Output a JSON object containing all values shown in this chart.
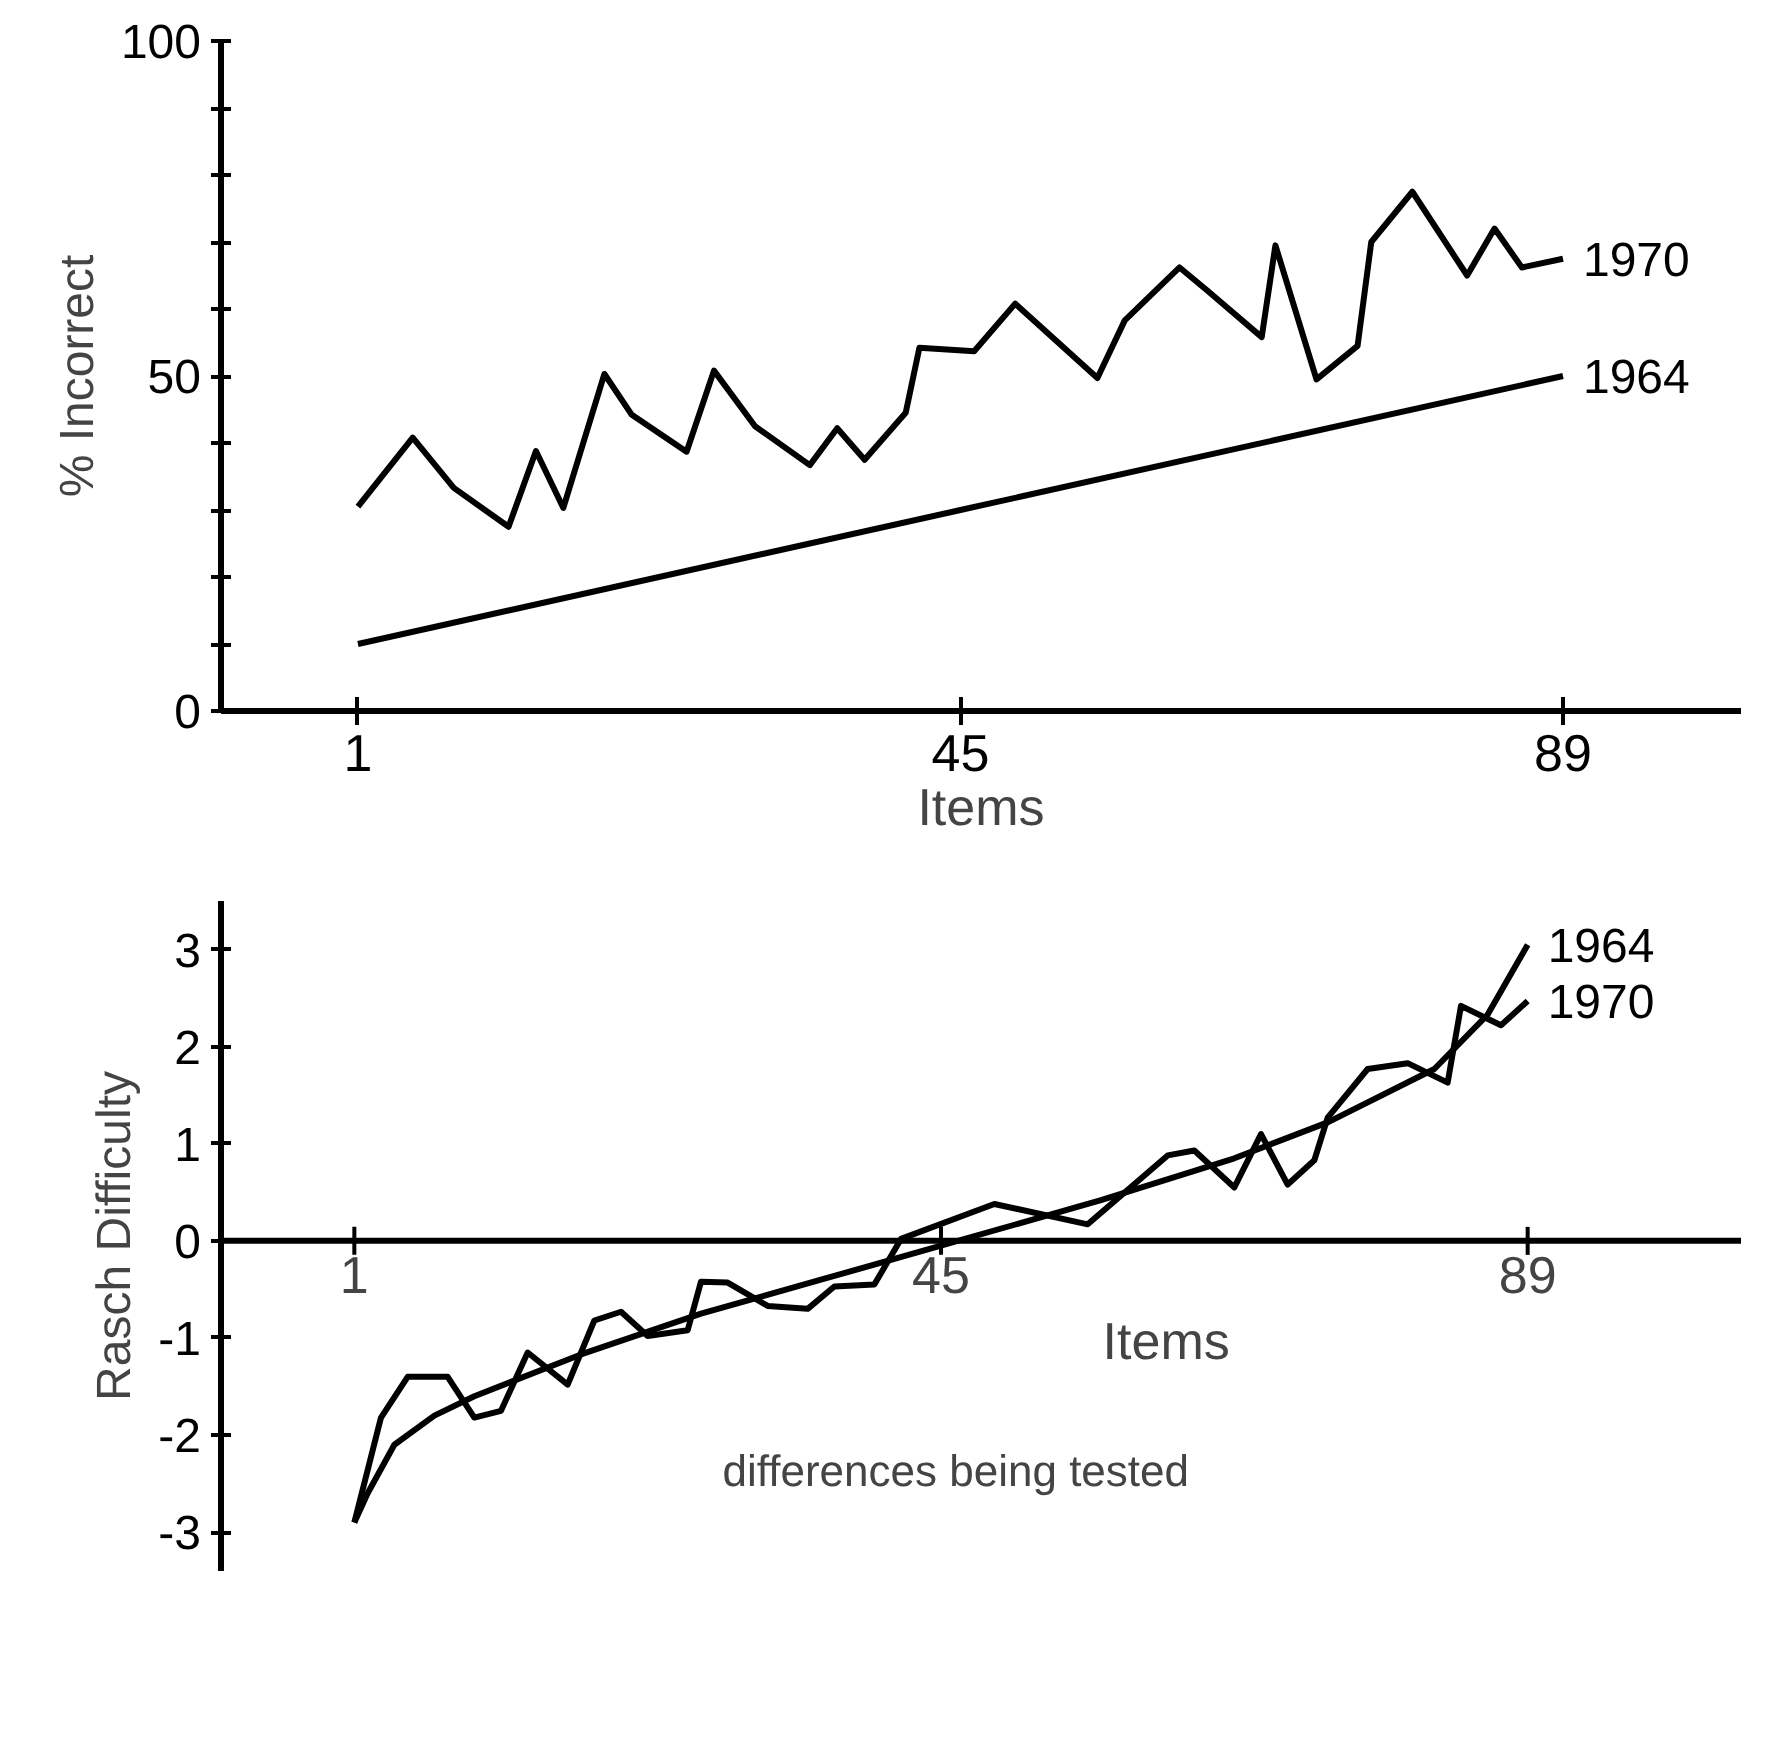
{
  "chart_data": [
    {
      "type": "line",
      "ylabel": "% Incorrect",
      "xlabel": "Items",
      "xlim": [
        -9,
        102
      ],
      "ylim": [
        0,
        100
      ],
      "xticks": [
        1,
        45,
        89
      ],
      "yticks": [
        0,
        {
          "value": 10,
          "label": null
        },
        {
          "value": 20,
          "label": null
        },
        {
          "value": 30,
          "label": null
        },
        {
          "value": 40,
          "label": null
        },
        50,
        {
          "value": 60,
          "label": null
        },
        {
          "value": 70,
          "label": null
        },
        {
          "value": 80,
          "label": null
        },
        {
          "value": 90,
          "label": null
        },
        100
      ],
      "grid": false,
      "marker": "none",
      "line_style": "solid",
      "series": [
        {
          "name": "1970",
          "color": "#000000",
          "x": [
            1,
            5,
            8,
            12,
            14,
            16,
            19,
            21,
            25,
            27,
            30,
            34,
            36,
            38,
            41,
            42,
            46,
            49,
            55,
            57,
            61,
            63,
            67,
            68,
            71,
            74,
            75,
            78,
            82,
            84,
            86,
            89
          ],
          "values": [
            30.5,
            40.8,
            33.3,
            27.5,
            38.8,
            30.3,
            50.3,
            44.2,
            38.7,
            50.8,
            42.5,
            36.7,
            42.2,
            37.5,
            44.5,
            54.2,
            53.7,
            60.8,
            49.7,
            58.3,
            66.2,
            62.8,
            55.8,
            69.5,
            49.5,
            54.5,
            70,
            77.5,
            65,
            72,
            66.2,
            67.5
          ]
        },
        {
          "name": "1964",
          "color": "#000000",
          "x": [
            1,
            45,
            89
          ],
          "values": [
            10,
            30,
            50
          ]
        }
      ]
    },
    {
      "type": "line",
      "ylabel": "Rasch Difficulty",
      "xlabel": "Items",
      "xlim": [
        -9,
        105
      ],
      "ylim": [
        -3.4,
        3.5
      ],
      "xticks": [
        1,
        45,
        89
      ],
      "yticks": [
        -3,
        -2,
        -1,
        0,
        1,
        2,
        3
      ],
      "grid": false,
      "marker": "none",
      "line_style": "solid",
      "annotations": [
        "differences being tested"
      ],
      "series": [
        {
          "name": "1964",
          "color": "#000000",
          "x": [
            1,
            2,
            4,
            7,
            10,
            18,
            27,
            36,
            45,
            57,
            67,
            74,
            82,
            86,
            89
          ],
          "values": [
            -2.9,
            -2.6,
            -2.1,
            -1.8,
            -1.6,
            -1.17,
            -0.75,
            -0.4,
            -0.05,
            0.42,
            0.85,
            1.22,
            1.77,
            2.33,
            3.05
          ]
        },
        {
          "name": "1970",
          "color": "#000000",
          "x": [
            1,
            3,
            5,
            8,
            10,
            12,
            14,
            17,
            19,
            21,
            23,
            26,
            27,
            29,
            32,
            35,
            37,
            40,
            42,
            49,
            56,
            62,
            64,
            67,
            69,
            71,
            73,
            74,
            77,
            80,
            83,
            84,
            87,
            89
          ],
          "values": [
            -2.9,
            -1.82,
            -1.4,
            -1.4,
            -1.82,
            -1.75,
            -1.15,
            -1.48,
            -0.82,
            -0.73,
            -0.98,
            -0.92,
            -0.42,
            -0.43,
            -0.67,
            -0.7,
            -0.47,
            -0.45,
            0.02,
            0.38,
            0.17,
            0.88,
            0.93,
            0.55,
            1.1,
            0.58,
            0.83,
            1.27,
            1.77,
            1.83,
            1.63,
            2.42,
            2.22,
            2.47
          ]
        }
      ]
    }
  ]
}
